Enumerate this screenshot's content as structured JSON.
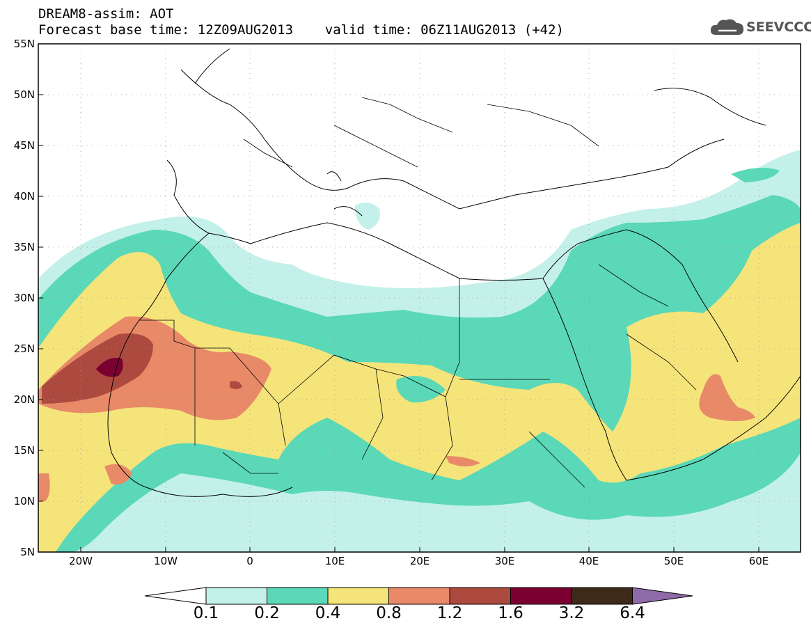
{
  "header": {
    "line1": "DREAM8-assim: AOT",
    "line2": "Forecast base time: 12Z09AUG2013    valid time: 06Z11AUG2013 (+42)"
  },
  "logo": {
    "text": "SEEVCCC",
    "icon": "cloud-icon",
    "color": "#555555"
  },
  "axes": {
    "lat_labels": [
      "55N",
      "50N",
      "45N",
      "40N",
      "35N",
      "30N",
      "25N",
      "20N",
      "15N",
      "10N",
      "5N"
    ],
    "lon_labels": [
      "20W",
      "10W",
      "0",
      "10E",
      "20E",
      "30E",
      "40E",
      "50E",
      "60E"
    ],
    "lat_range": [
      5,
      55
    ],
    "lon_range": [
      -25,
      65
    ],
    "grid": "dotted"
  },
  "colorbar": {
    "labels": [
      "0.1",
      "0.2",
      "0.4",
      "0.8",
      "1.2",
      "1.6",
      "3.2",
      "6.4"
    ],
    "colors": [
      "#ffffff",
      "#c4f0ea",
      "#5ad8b8",
      "#f5e47a",
      "#e88a68",
      "#ad4a40",
      "#7a0030",
      "#3d2a18",
      "#8e6aa8"
    ]
  },
  "fields": {
    "variable": "AOT",
    "levels": [
      {
        "range": "0.1-0.2",
        "color": "#c4f0ea"
      },
      {
        "range": "0.2-0.4",
        "color": "#5ad8b8"
      },
      {
        "range": "0.4-0.8",
        "color": "#f5e47a"
      },
      {
        "range": "0.8-1.2",
        "color": "#e88a68"
      },
      {
        "range": "1.2-1.6",
        "color": "#ad4a40"
      },
      {
        "range": "1.6-3.2",
        "color": "#7a0030"
      }
    ]
  }
}
